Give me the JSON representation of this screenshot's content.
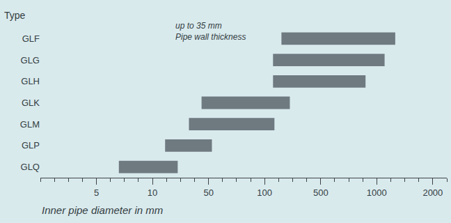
{
  "chart_data": {
    "type": "bar",
    "orientation": "horizontal",
    "y_label": "Type",
    "x_label": "Inner pipe diameter in mm",
    "annotations": [
      "up to 35 mm",
      "Pipe wall thickness"
    ],
    "categories": [
      "GLF",
      "GLG",
      "GLH",
      "GLK",
      "GLM",
      "GLP",
      "GLQ"
    ],
    "values": [
      [
        220,
        1330
      ],
      [
        160,
        1140
      ],
      [
        160,
        900
      ],
      [
        45,
        280
      ],
      [
        36,
        170
      ],
      [
        19,
        53
      ],
      [
        7,
        28
      ]
    ],
    "color": "#6f7a80",
    "xlim": [
      0,
      2250
    ],
    "xticks": [
      5,
      10,
      50,
      100,
      500,
      1000,
      2000
    ],
    "grid": false
  }
}
